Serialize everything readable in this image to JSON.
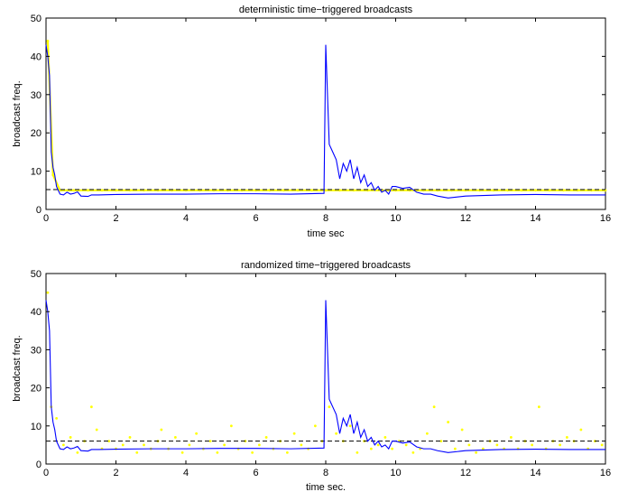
{
  "chart_data": [
    {
      "type": "line",
      "title": "deterministic time−triggered broadcasts",
      "xlabel": "time sec",
      "ylabel": "broadcast freq.",
      "xlim": [
        0,
        16
      ],
      "ylim": [
        0,
        50
      ],
      "xticks": [
        "0",
        "2",
        "4",
        "6",
        "8",
        "10",
        "12",
        "14",
        "16"
      ],
      "yticks": [
        "0",
        "10",
        "20",
        "30",
        "40",
        "50"
      ],
      "grid": false,
      "colors": {
        "line": "#0000ff",
        "dots": "#ffff00",
        "threshold": "#000000"
      },
      "threshold": 5.2,
      "series": [
        {
          "style": "solid-line",
          "x": [
            0,
            0.05,
            0.1,
            0.15,
            0.2,
            0.25,
            0.3,
            0.4,
            0.5,
            0.6,
            0.7,
            0.8,
            0.9,
            1.0,
            1.2,
            1.3,
            1.5,
            2.0,
            3.0,
            4.0,
            5.0,
            6.0,
            7.0,
            7.95,
            8.0,
            8.05,
            8.1,
            8.15,
            8.2,
            8.3,
            8.4,
            8.5,
            8.6,
            8.7,
            8.8,
            8.9,
            9.0,
            9.1,
            9.2,
            9.3,
            9.4,
            9.5,
            9.6,
            9.7,
            9.8,
            9.9,
            10.0,
            10.2,
            10.4,
            10.6,
            10.8,
            11.0,
            11.2,
            11.5,
            12.0,
            13.0,
            14.0,
            15.0,
            16.0
          ],
          "y": [
            43,
            40,
            35,
            15,
            11,
            9,
            6,
            4,
            3.8,
            4.5,
            4,
            4.2,
            4.6,
            3.5,
            3.4,
            3.8,
            3.8,
            3.9,
            4,
            4,
            4.1,
            4.1,
            4,
            4.2,
            43,
            30,
            17,
            16,
            15,
            13,
            8,
            12,
            10,
            13,
            8,
            11,
            7,
            9,
            6,
            7,
            5,
            6,
            4.5,
            5,
            4,
            6,
            6,
            5.5,
            5.8,
            4.5,
            4,
            4,
            3.5,
            3,
            3.5,
            3.8,
            3.9,
            3.8,
            3.8
          ]
        },
        {
          "style": "yellow-dots",
          "x": [
            0.05,
            0.2,
            0.4,
            0.8,
            1.2,
            1.6,
            2.0,
            2.4,
            2.8,
            3.2,
            3.6,
            4.0,
            4.4,
            4.8,
            5.2,
            5.6,
            6.0,
            6.4,
            6.8,
            7.2,
            7.6,
            8.0,
            8.4,
            8.8,
            9.2,
            9.6,
            10.0,
            10.4,
            10.8,
            11.2,
            11.6,
            12.0,
            12.4,
            12.8,
            13.2,
            13.6,
            14.0,
            14.4,
            14.8,
            15.2,
            15.6,
            16.0
          ],
          "y": [
            44,
            9,
            5,
            5,
            5,
            5,
            5,
            5,
            5,
            5,
            5,
            5,
            5,
            5,
            5,
            5,
            5,
            5,
            5,
            5,
            5,
            5,
            5,
            5,
            5,
            5,
            5,
            5,
            5,
            5,
            5,
            5,
            5,
            5,
            5,
            5,
            5,
            5,
            5,
            5,
            5,
            5
          ]
        }
      ]
    },
    {
      "type": "line",
      "title": "randomized time−triggered broadcasts",
      "xlabel": "time sec.",
      "ylabel": "broadcast freq.",
      "xlim": [
        0,
        16
      ],
      "ylim": [
        0,
        50
      ],
      "xticks": [
        "0",
        "2",
        "4",
        "6",
        "8",
        "10",
        "12",
        "14",
        "16"
      ],
      "yticks": [
        "0",
        "10",
        "20",
        "30",
        "40",
        "50"
      ],
      "grid": false,
      "colors": {
        "line": "#0000ff",
        "dots": "#ffff00",
        "threshold": "#000000"
      },
      "threshold": 6,
      "series": [
        {
          "style": "solid-line",
          "x": [
            0,
            0.05,
            0.1,
            0.15,
            0.2,
            0.25,
            0.3,
            0.4,
            0.5,
            0.6,
            0.7,
            0.8,
            0.9,
            1.0,
            1.2,
            1.3,
            1.5,
            2.0,
            3.0,
            4.0,
            5.0,
            6.0,
            7.0,
            7.95,
            8.0,
            8.05,
            8.1,
            8.15,
            8.2,
            8.3,
            8.4,
            8.5,
            8.6,
            8.7,
            8.8,
            8.9,
            9.0,
            9.1,
            9.2,
            9.3,
            9.4,
            9.5,
            9.6,
            9.7,
            9.8,
            9.9,
            10.0,
            10.2,
            10.4,
            10.6,
            10.8,
            11.0,
            11.2,
            11.5,
            12.0,
            13.0,
            14.0,
            15.0,
            16.0
          ],
          "y": [
            43,
            40,
            35,
            15,
            11,
            9,
            6,
            4,
            3.8,
            4.5,
            4,
            4.2,
            4.6,
            3.5,
            3.4,
            3.8,
            3.8,
            3.9,
            4,
            4,
            4.1,
            4.1,
            4,
            4.2,
            43,
            30,
            17,
            16,
            15,
            13,
            8,
            12,
            10,
            13,
            8,
            11,
            7,
            9,
            6,
            7,
            5,
            6,
            4.5,
            5,
            4,
            6,
            6,
            5.5,
            5.8,
            4.5,
            4,
            4,
            3.5,
            3,
            3.5,
            3.8,
            3.9,
            3.8,
            3.8
          ]
        },
        {
          "style": "yellow-dots",
          "x": [
            0.05,
            0.15,
            0.3,
            0.5,
            0.7,
            0.9,
            1.1,
            1.3,
            1.45,
            1.6,
            1.8,
            2.0,
            2.2,
            2.4,
            2.6,
            2.8,
            3.0,
            3.2,
            3.3,
            3.5,
            3.7,
            3.9,
            4.1,
            4.3,
            4.5,
            4.7,
            4.9,
            5.1,
            5.3,
            5.5,
            5.7,
            5.9,
            6.1,
            6.3,
            6.5,
            6.7,
            6.9,
            7.1,
            7.3,
            7.5,
            7.7,
            7.9,
            8.1,
            8.3,
            8.5,
            8.7,
            8.9,
            9.1,
            9.3,
            9.5,
            9.7,
            9.9,
            10.1,
            10.3,
            10.5,
            10.7,
            10.9,
            11.1,
            11.3,
            11.5,
            11.7,
            11.9,
            12.1,
            12.3,
            12.5,
            12.7,
            12.9,
            13.1,
            13.3,
            13.5,
            13.7,
            13.9,
            14.1,
            14.3,
            14.5,
            14.7,
            14.9,
            15.1,
            15.3,
            15.5,
            15.7,
            15.9
          ],
          "y": [
            45,
            15,
            12,
            5,
            7,
            3,
            6,
            15,
            9,
            4,
            6,
            4,
            5,
            7,
            3,
            5,
            4,
            6,
            9,
            4,
            7,
            3,
            5,
            8,
            4,
            6,
            3,
            5,
            10,
            4,
            6,
            3,
            5,
            7,
            4,
            6,
            3,
            8,
            5,
            4,
            10,
            6,
            15,
            8,
            6,
            10,
            3,
            6,
            4,
            5,
            7,
            4,
            6,
            5,
            3,
            4,
            8,
            15,
            6,
            11,
            4,
            9,
            5,
            3,
            4,
            6,
            5,
            4,
            7,
            4,
            6,
            5,
            15,
            4,
            6,
            5,
            7,
            6,
            9,
            4,
            6,
            5
          ]
        }
      ]
    }
  ]
}
